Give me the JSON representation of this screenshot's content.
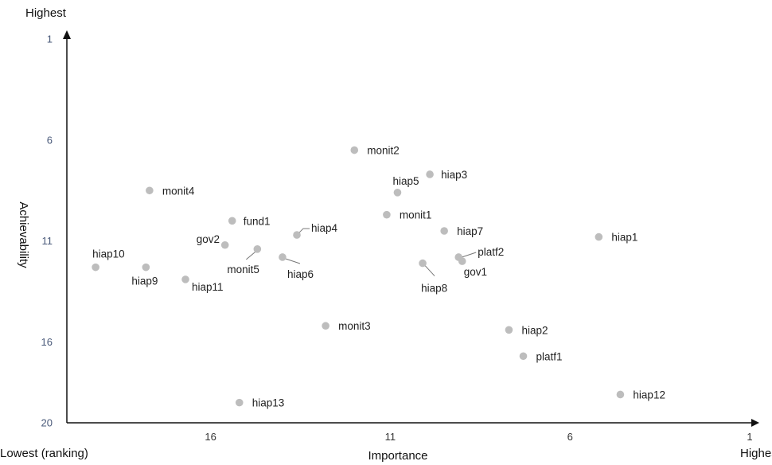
{
  "chart_data": {
    "type": "scatter",
    "xlabel": "Importance",
    "ylabel": "Achievability",
    "x_low_label": "Lowest (ranking)",
    "x_high_label": "Highest",
    "y_high_label": "Highest",
    "xlim": [
      20,
      1
    ],
    "ylim": [
      20,
      1
    ],
    "x_ticks": [
      "16",
      "11",
      "6",
      "1"
    ],
    "y_ticks": [
      "1",
      "6",
      "11",
      "16",
      "20"
    ],
    "grid": false,
    "marker_color": "#bdbdbd",
    "points": [
      {
        "label": "monit2",
        "x": 12.0,
        "y": 6.5
      },
      {
        "label": "hiap3",
        "x": 9.9,
        "y": 7.7
      },
      {
        "label": "hiap5",
        "x": 10.8,
        "y": 8.6
      },
      {
        "label": "monit4",
        "x": 17.7,
        "y": 8.5
      },
      {
        "label": "monit1",
        "x": 11.1,
        "y": 9.7
      },
      {
        "label": "fund1",
        "x": 15.4,
        "y": 10.0
      },
      {
        "label": "hiap4",
        "x": 13.6,
        "y": 10.7
      },
      {
        "label": "hiap7",
        "x": 9.5,
        "y": 10.5
      },
      {
        "label": "hiap1",
        "x": 5.2,
        "y": 10.8
      },
      {
        "label": "gov2",
        "x": 15.6,
        "y": 11.2
      },
      {
        "label": "monit5",
        "x": 14.7,
        "y": 11.4
      },
      {
        "label": "hiap6",
        "x": 14.0,
        "y": 11.8
      },
      {
        "label": "platf2",
        "x": 9.1,
        "y": 11.8
      },
      {
        "label": "gov1",
        "x": 9.0,
        "y": 12.0
      },
      {
        "label": "hiap8",
        "x": 10.1,
        "y": 12.1
      },
      {
        "label": "hiap10",
        "x": 19.2,
        "y": 12.3
      },
      {
        "label": "hiap9",
        "x": 17.8,
        "y": 12.3
      },
      {
        "label": "hiap11",
        "x": 16.7,
        "y": 12.9
      },
      {
        "label": "monit3",
        "x": 12.8,
        "y": 15.2
      },
      {
        "label": "hiap2",
        "x": 7.7,
        "y": 15.4
      },
      {
        "label": "platf1",
        "x": 7.3,
        "y": 16.7
      },
      {
        "label": "hiap12",
        "x": 4.6,
        "y": 18.6
      },
      {
        "label": "hiap13",
        "x": 15.2,
        "y": 19.0
      }
    ]
  }
}
